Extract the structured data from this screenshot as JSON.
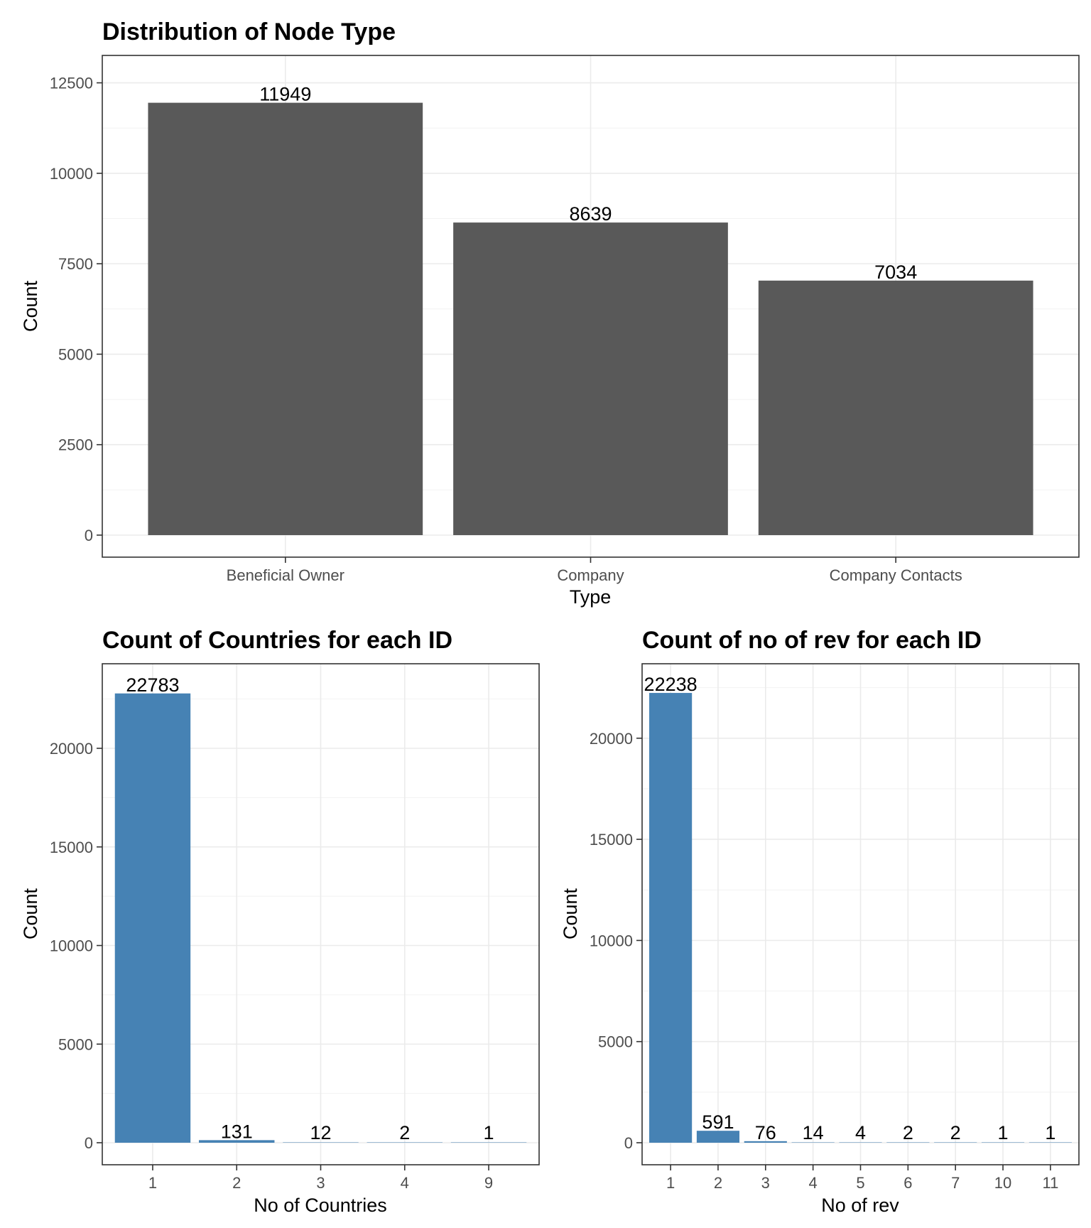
{
  "chart_data": [
    {
      "type": "bar",
      "title": "Distribution of Node Type",
      "xlabel": "Type",
      "ylabel": "Count",
      "categories": [
        "Beneficial Owner",
        "Company",
        "Company Contacts"
      ],
      "values": [
        11949,
        8639,
        7034
      ],
      "data_labels": [
        "11949",
        "8639",
        "7034"
      ],
      "ylim": [
        0,
        13100
      ],
      "yticks": [
        0,
        2500,
        5000,
        7500,
        10000,
        12500
      ],
      "bar_color": "#595959",
      "grid": true,
      "legend": "none"
    },
    {
      "type": "bar",
      "title": "Count of Countries for each ID",
      "xlabel": "No of Countries",
      "ylabel": "Count",
      "categories": [
        "1",
        "2",
        "3",
        "4",
        "9"
      ],
      "values": [
        22783,
        131,
        12,
        2,
        1
      ],
      "data_labels": [
        "22783",
        "131",
        "12",
        "2",
        "1"
      ],
      "ylim": [
        0,
        24000
      ],
      "yticks": [
        0,
        5000,
        10000,
        15000,
        20000
      ],
      "bar_color": "#4682b4",
      "grid": true,
      "legend": "none"
    },
    {
      "type": "bar",
      "title": "Count of no of rev for each ID",
      "xlabel": "No of rev",
      "ylabel": "Count",
      "categories": [
        "1",
        "2",
        "3",
        "4",
        "5",
        "6",
        "7",
        "10",
        "11"
      ],
      "values": [
        22238,
        591,
        76,
        14,
        4,
        2,
        2,
        1,
        1
      ],
      "data_labels": [
        "22238",
        "591",
        "76",
        "14",
        "4",
        "2",
        "2",
        "1",
        "1"
      ],
      "ylim": [
        0,
        23400
      ],
      "yticks": [
        0,
        5000,
        10000,
        15000,
        20000
      ],
      "bar_color": "#4682b4",
      "grid": true,
      "legend": "none"
    }
  ]
}
